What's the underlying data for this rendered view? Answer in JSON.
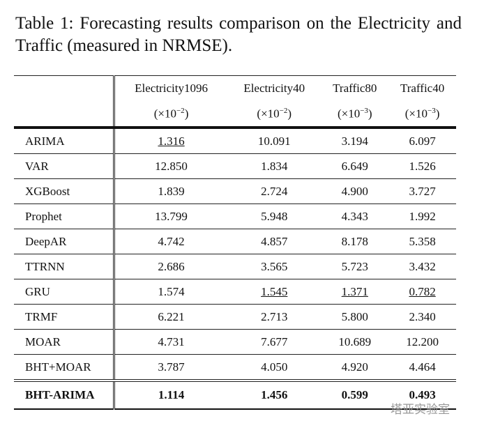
{
  "caption": {
    "label": "Table 1:",
    "text": "Forecasting results comparison on the Electricity and Traffic (measured in NRMSE)."
  },
  "table": {
    "columns": [
      {
        "name": "Electricity1096",
        "unit": "(×10",
        "exponent": "−2",
        "unit_close": ")"
      },
      {
        "name": "Electricity40",
        "unit": "(×10",
        "exponent": "−2",
        "unit_close": ")"
      },
      {
        "name": "Traffic80",
        "unit": "(×10",
        "exponent": "−3",
        "unit_close": ")"
      },
      {
        "name": "Traffic40",
        "unit": "(×10",
        "exponent": "−3",
        "unit_close": ")"
      }
    ],
    "rows": [
      [
        "ARIMA",
        "1.316",
        "10.091",
        "3.194",
        "6.097"
      ],
      [
        "VAR",
        "12.850",
        "1.834",
        "6.649",
        "1.526"
      ],
      [
        "XGBoost",
        "1.839",
        "2.724",
        "4.900",
        "3.727"
      ],
      [
        "Prophet",
        "13.799",
        "5.948",
        "4.343",
        "1.992"
      ],
      [
        "DeepAR",
        "4.742",
        "4.857",
        "8.178",
        "5.358"
      ],
      [
        "TTRNN",
        "2.686",
        "3.565",
        "5.723",
        "3.432"
      ],
      [
        "GRU",
        "1.574",
        "1.545",
        "1.371",
        "0.782"
      ],
      [
        "TRMF",
        "6.221",
        "2.713",
        "5.800",
        "2.340"
      ],
      [
        "MOAR",
        "4.731",
        "7.677",
        "10.689",
        "12.200"
      ],
      [
        "BHT+MOAR",
        "3.787",
        "4.050",
        "4.920",
        "4.464"
      ],
      [
        "BHT-ARIMA",
        "1.114",
        "1.456",
        "0.599",
        "0.493"
      ]
    ]
  },
  "watermark": "塔亚实验室"
}
